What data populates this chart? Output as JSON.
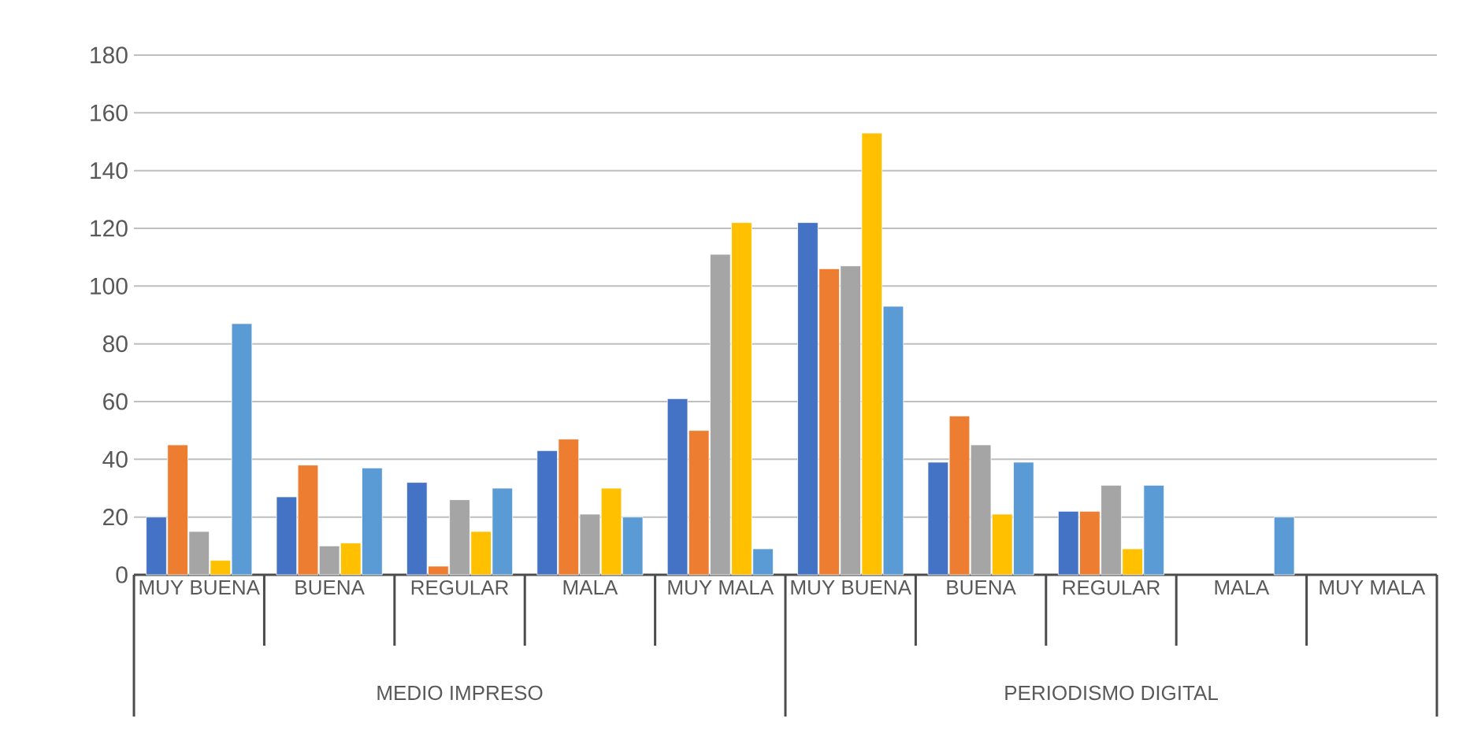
{
  "chart_data": {
    "type": "bar",
    "categories": [
      "MUY BUENA",
      "BUENA",
      "REGULAR",
      "MALA",
      "MUY MALA",
      "MUY BUENA",
      "BUENA",
      "REGULAR",
      "MALA",
      "MUY MALA"
    ],
    "series": [
      {
        "color": "#4472c4",
        "values": [
          20,
          27,
          32,
          43,
          61,
          122,
          39,
          22,
          null,
          null
        ]
      },
      {
        "color": "#ed7d31",
        "values": [
          45,
          38,
          3,
          47,
          50,
          106,
          55,
          22,
          null,
          null
        ]
      },
      {
        "color": "#a5a5a5",
        "values": [
          15,
          10,
          26,
          21,
          111,
          107,
          45,
          31,
          null,
          null
        ]
      },
      {
        "color": "#ffc000",
        "values": [
          5,
          11,
          15,
          30,
          122,
          153,
          21,
          9,
          null,
          null
        ]
      },
      {
        "color": "#5b9bd5",
        "values": [
          87,
          37,
          30,
          20,
          9,
          93,
          39,
          31,
          20,
          null
        ]
      }
    ],
    "annotations": [
      "MEDIO IMPRESO",
      "PERIODISMO DIGITAL"
    ],
    "ylim": [
      0,
      180
    ],
    "yticks": [
      0,
      20,
      40,
      60,
      80,
      100,
      120,
      140,
      160,
      180
    ],
    "grid": "y"
  }
}
